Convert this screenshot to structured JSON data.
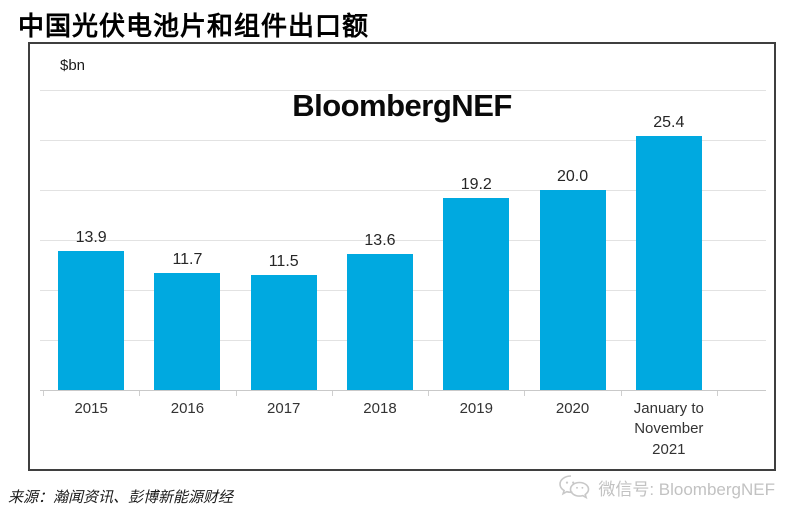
{
  "page": {
    "title": "中国光伏电池片和组件出口额",
    "unit_label": "$bn",
    "watermark": "BloombergNEF",
    "source": "来源：瀚闻资讯、彭博新能源财经",
    "wechat_label": "微信号: BloombergNEF"
  },
  "icons": {
    "wechat": "wechat-icon"
  },
  "colors": {
    "bar": "#00A9E0",
    "frame_border": "#3f3f3f",
    "gridline": "#e2e2e2",
    "axis_line": "#c9c9c9",
    "title_text": "#000000",
    "value_label": "#262626",
    "watermark_gray": "#c2c2c2"
  },
  "chart_data": {
    "type": "bar",
    "title": "中国光伏电池片和组件出口额",
    "ylabel": "$bn",
    "categories": [
      "2015",
      "2016",
      "2017",
      "2018",
      "2019",
      "2020",
      "January to November 2021"
    ],
    "values": [
      13.9,
      11.7,
      11.5,
      13.6,
      19.2,
      20.0,
      25.4
    ],
    "value_labels": [
      "13.9",
      "11.7",
      "11.5",
      "13.6",
      "19.2",
      "20.0",
      "25.4"
    ],
    "ylim": [
      0,
      30
    ],
    "grid_interval": 5,
    "grid": true,
    "legend": false,
    "watermark": "BloombergNEF",
    "source": "来源：瀚闻资讯、彭博新能源财经"
  }
}
